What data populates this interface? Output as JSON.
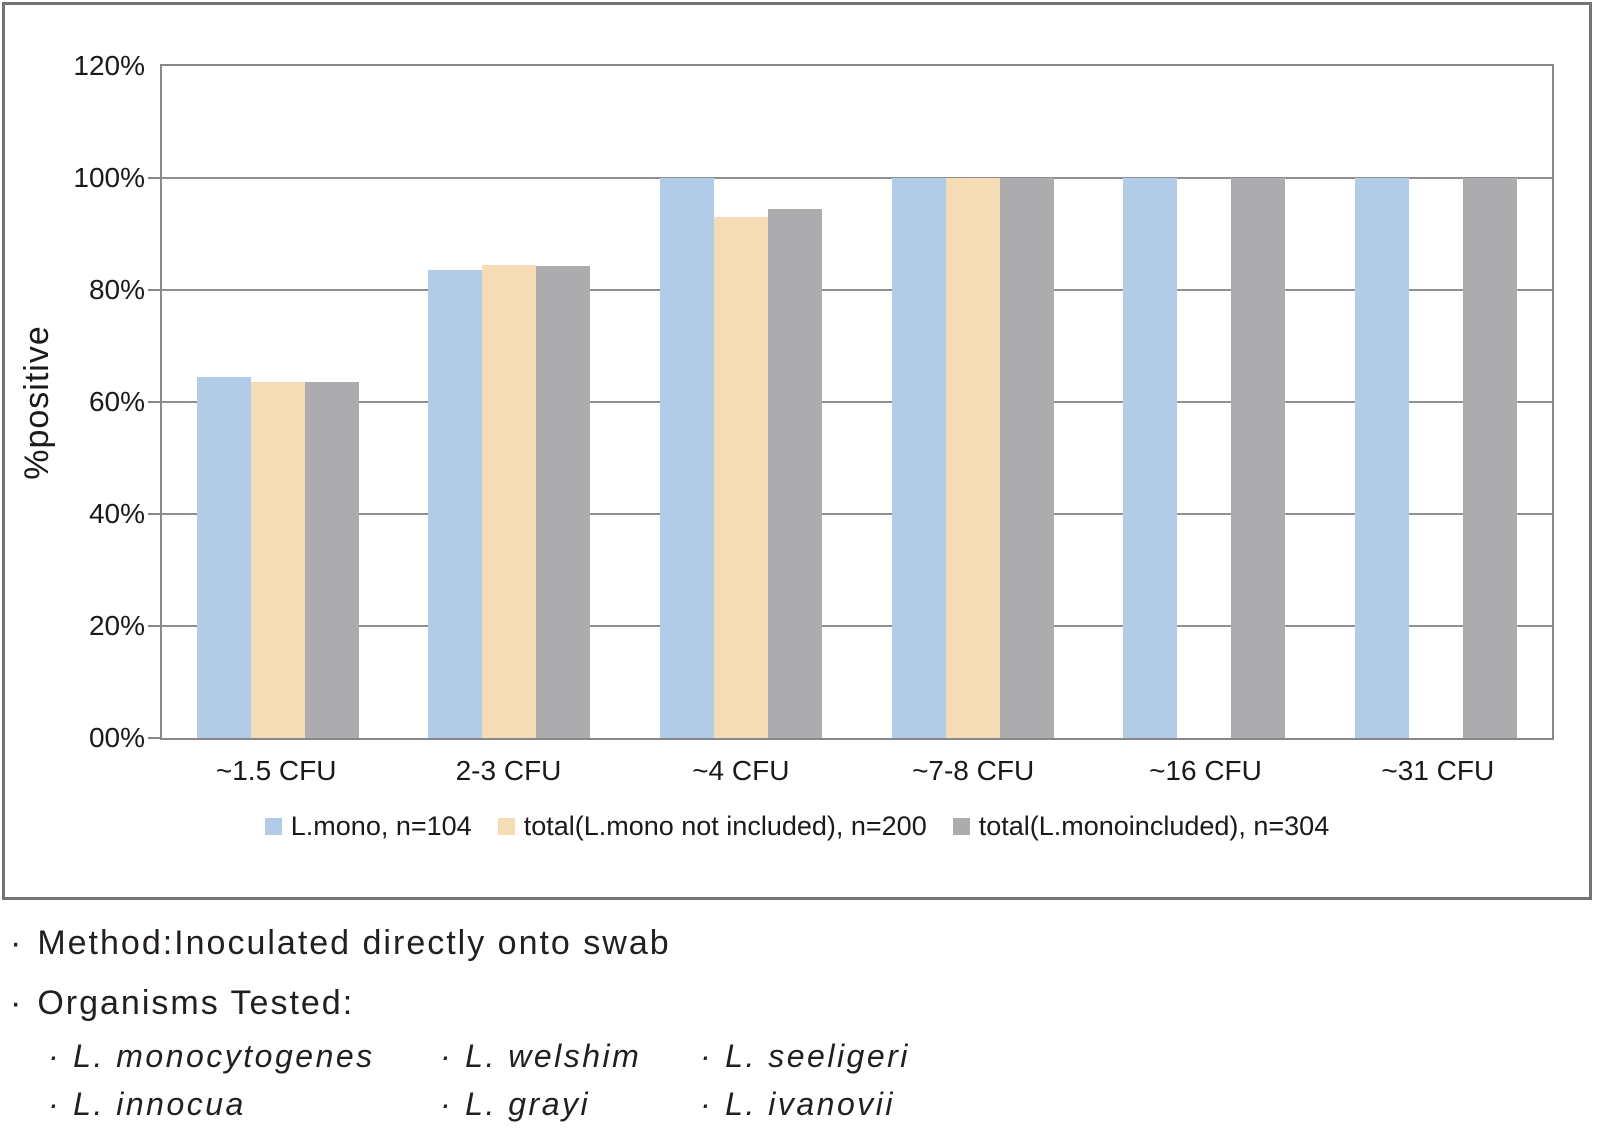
{
  "chart_data": {
    "type": "bar",
    "title": "",
    "xlabel": "",
    "ylabel": "%positive",
    "ylim": [
      0,
      120
    ],
    "grid": true,
    "legend_position": "bottom",
    "y_tick_labels_top_to_bottom": [
      "120%",
      "100%",
      "80%",
      "60%",
      "40%",
      "20%",
      "00%"
    ],
    "categories": [
      "~1.5 CFU",
      "2-3 CFU",
      "~4 CFU",
      "~7-8 CFU",
      "~16 CFU",
      "~31 CFU"
    ],
    "series": [
      {
        "name": "L.mono, n=104",
        "color": "#b2cbe7",
        "values": [
          64.4,
          83.5,
          100,
          100,
          100,
          100
        ]
      },
      {
        "name": "total(L.mono not included), n=200",
        "color": "#f5dcb6",
        "values": [
          63.5,
          84.4,
          93,
          100,
          null,
          null
        ]
      },
      {
        "name": "total(L.monoincluded), n=304",
        "color": "#acabad",
        "values": [
          63.5,
          84.3,
          94.5,
          100,
          100,
          100
        ]
      }
    ]
  },
  "notes": {
    "bullet": "·",
    "method": "Method:Inoculated directly onto swab",
    "organisms_heading": "Organisms Tested:",
    "organisms": [
      [
        "L. monocytogenes",
        "L. welshim",
        "L. seeligeri"
      ],
      [
        "L. innocua",
        "L. grayi",
        "L. ivanovii"
      ]
    ]
  },
  "style_colors": {
    "grid_line": "#8f9093",
    "plot_border": "#87888b",
    "outer_border": "#737476",
    "text": "#231f20"
  }
}
